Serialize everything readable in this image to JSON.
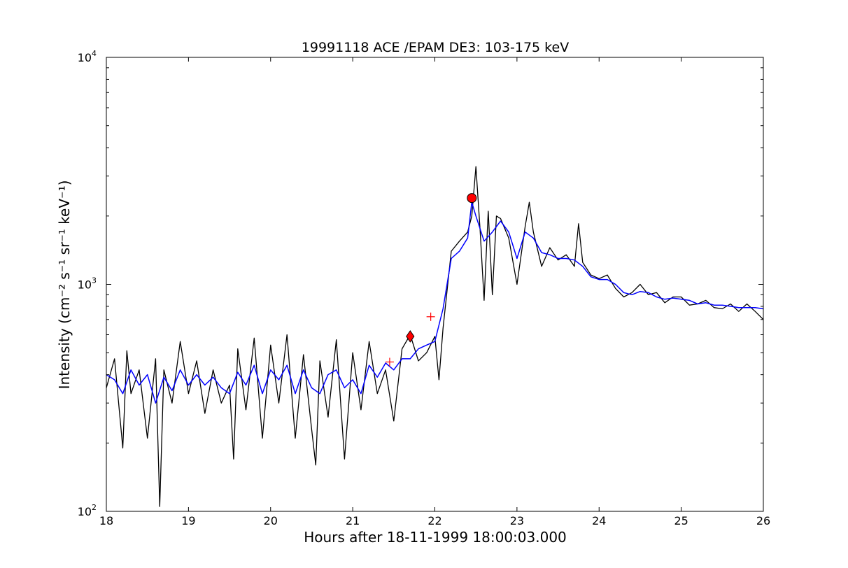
{
  "chart_data": {
    "type": "line",
    "title": "19991118 ACE /EPAM DE3: 103-175 keV",
    "xlabel": "Hours after 18-11-1999 18:00:03.000",
    "ylabel": "Intensity (cm⁻² s⁻¹ sr⁻¹ keV⁻¹)",
    "xlim": [
      18,
      26
    ],
    "ylim": [
      100,
      10000
    ],
    "yscale": "log",
    "grid": false,
    "x_ticks": [
      "18",
      "19",
      "20",
      "21",
      "22",
      "23",
      "24",
      "25",
      "26"
    ],
    "y_ticks": [
      {
        "base": "10",
        "exp": "2"
      },
      {
        "base": "10",
        "exp": "3"
      },
      {
        "base": "10",
        "exp": "4"
      }
    ],
    "colors": {
      "raw": "#000000",
      "smoothed": "#0000ff",
      "marker": "#ff0000"
    },
    "series": [
      {
        "line_color": "#000000",
        "x": [
          18.0,
          18.1,
          18.2,
          18.25,
          18.3,
          18.4,
          18.5,
          18.6,
          18.65,
          18.7,
          18.8,
          18.9,
          19.0,
          19.1,
          19.2,
          19.3,
          19.4,
          19.5,
          19.55,
          19.6,
          19.7,
          19.8,
          19.9,
          20.0,
          20.1,
          20.2,
          20.3,
          20.4,
          20.5,
          20.55,
          20.6,
          20.7,
          20.8,
          20.9,
          21.0,
          21.1,
          21.2,
          21.3,
          21.4,
          21.5,
          21.6,
          21.7,
          21.8,
          21.9,
          22.0,
          22.05,
          22.1,
          22.2,
          22.3,
          22.4,
          22.45,
          22.5,
          22.55,
          22.6,
          22.65,
          22.7,
          22.75,
          22.8,
          22.9,
          23.0,
          23.1,
          23.15,
          23.2,
          23.3,
          23.4,
          23.5,
          23.6,
          23.7,
          23.75,
          23.8,
          23.9,
          24.0,
          24.1,
          24.2,
          24.3,
          24.4,
          24.5,
          24.6,
          24.7,
          24.8,
          24.9,
          25.0,
          25.1,
          25.2,
          25.3,
          25.4,
          25.5,
          25.6,
          25.7,
          25.8,
          25.9,
          26.0
        ],
        "y": [
          350,
          470,
          190,
          510,
          330,
          420,
          210,
          470,
          105,
          420,
          300,
          560,
          330,
          460,
          270,
          420,
          300,
          360,
          170,
          520,
          280,
          580,
          210,
          540,
          300,
          600,
          210,
          490,
          230,
          160,
          460,
          260,
          570,
          170,
          500,
          280,
          560,
          330,
          420,
          250,
          520,
          600,
          460,
          500,
          590,
          380,
          640,
          1400,
          1550,
          1700,
          2000,
          3300,
          1750,
          850,
          2100,
          900,
          2000,
          1950,
          1600,
          1000,
          1800,
          2300,
          1700,
          1200,
          1450,
          1280,
          1350,
          1200,
          1850,
          1250,
          1100,
          1060,
          1100,
          960,
          880,
          920,
          1000,
          900,
          920,
          830,
          880,
          880,
          810,
          820,
          850,
          790,
          780,
          820,
          760,
          820,
          760,
          700
        ]
      },
      {
        "line_color": "#0000ff",
        "x": [
          18.0,
          18.1,
          18.2,
          18.3,
          18.4,
          18.5,
          18.6,
          18.7,
          18.8,
          18.9,
          19.0,
          19.1,
          19.2,
          19.3,
          19.4,
          19.5,
          19.6,
          19.7,
          19.8,
          19.9,
          20.0,
          20.1,
          20.2,
          20.3,
          20.4,
          20.5,
          20.6,
          20.7,
          20.8,
          20.9,
          21.0,
          21.1,
          21.2,
          21.3,
          21.4,
          21.5,
          21.6,
          21.7,
          21.8,
          21.9,
          22.0,
          22.1,
          22.2,
          22.3,
          22.4,
          22.45,
          22.5,
          22.6,
          22.7,
          22.8,
          22.9,
          23.0,
          23.1,
          23.2,
          23.3,
          23.4,
          23.5,
          23.6,
          23.7,
          23.8,
          23.9,
          24.0,
          24.1,
          24.2,
          24.3,
          24.4,
          24.5,
          24.6,
          24.7,
          24.8,
          24.9,
          25.0,
          25.1,
          25.2,
          25.3,
          25.4,
          25.5,
          25.6,
          25.7,
          25.8,
          25.9,
          26.0
        ],
        "y": [
          400,
          380,
          330,
          420,
          360,
          400,
          300,
          390,
          340,
          420,
          360,
          400,
          360,
          390,
          350,
          330,
          410,
          360,
          440,
          330,
          420,
          380,
          440,
          330,
          420,
          350,
          330,
          400,
          420,
          350,
          380,
          330,
          440,
          390,
          450,
          420,
          470,
          470,
          520,
          540,
          560,
          780,
          1300,
          1400,
          1600,
          2300,
          2000,
          1550,
          1700,
          1900,
          1700,
          1300,
          1700,
          1600,
          1380,
          1350,
          1300,
          1300,
          1280,
          1200,
          1080,
          1050,
          1050,
          1000,
          920,
          900,
          930,
          920,
          880,
          860,
          870,
          860,
          850,
          820,
          830,
          810,
          810,
          800,
          790,
          790,
          790,
          780
        ]
      }
    ],
    "markers": [
      {
        "shape": "plus",
        "x": 21.45,
        "y": 455
      },
      {
        "shape": "diamond",
        "x": 21.7,
        "y": 590
      },
      {
        "shape": "plus",
        "x": 21.95,
        "y": 720
      },
      {
        "shape": "circle",
        "x": 22.45,
        "y": 2400
      }
    ]
  }
}
